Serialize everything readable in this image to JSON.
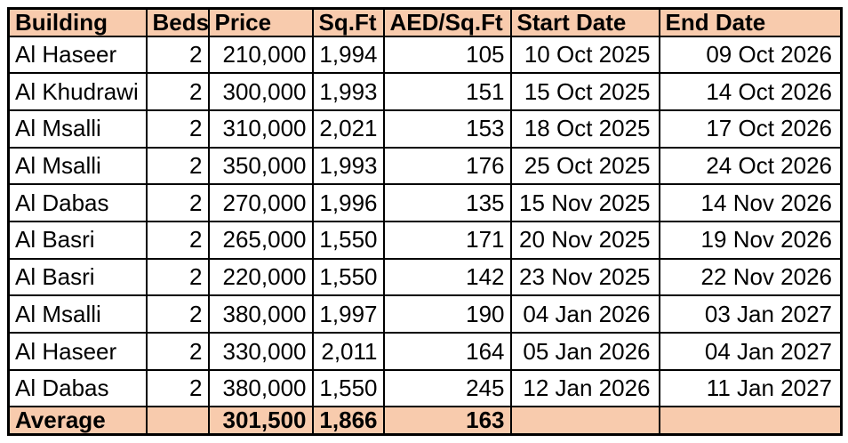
{
  "colors": {
    "header_bg": "#F8CBAD",
    "row_bg": "#FFFFFF",
    "border": "#000000",
    "text": "#000000"
  },
  "table": {
    "headers": [
      "Building",
      "Beds",
      "Price",
      "Sq.Ft",
      "AED/Sq.Ft",
      "Start Date",
      "End Date"
    ],
    "column_aligns": [
      "left",
      "right",
      "right",
      "right",
      "right",
      "right",
      "right"
    ],
    "rows": [
      [
        "Al Haseer",
        "2",
        "210,000",
        "1,994",
        "105",
        "10 Oct 2025",
        "09 Oct 2026"
      ],
      [
        "Al Khudrawi",
        "2",
        "300,000",
        "1,993",
        "151",
        "15 Oct 2025",
        "14 Oct 2026"
      ],
      [
        "Al Msalli",
        "2",
        "310,000",
        "2,021",
        "153",
        "18 Oct 2025",
        "17 Oct 2026"
      ],
      [
        "Al Msalli",
        "2",
        "350,000",
        "1,993",
        "176",
        "25 Oct 2025",
        "24 Oct 2026"
      ],
      [
        "Al Dabas",
        "2",
        "270,000",
        "1,996",
        "135",
        "15 Nov 2025",
        "14 Nov 2026"
      ],
      [
        "Al Basri",
        "2",
        "265,000",
        "1,550",
        "171",
        "20 Nov 2025",
        "19 Nov 2026"
      ],
      [
        "Al Basri",
        "2",
        "220,000",
        "1,550",
        "142",
        "23 Nov 2025",
        "22 Nov 2026"
      ],
      [
        "Al Msalli",
        "2",
        "380,000",
        "1,997",
        "190",
        "04 Jan 2026",
        "03 Jan 2027"
      ],
      [
        "Al Haseer",
        "2",
        "330,000",
        "2,011",
        "164",
        "05 Jan 2026",
        "04 Jan 2027"
      ],
      [
        "Al Dabas",
        "2",
        "380,000",
        "1,550",
        "245",
        "12 Jan 2026",
        "11 Jan 2027"
      ]
    ],
    "footer": [
      "Average",
      "",
      "301,500",
      "1,866",
      "163",
      "",
      ""
    ]
  }
}
